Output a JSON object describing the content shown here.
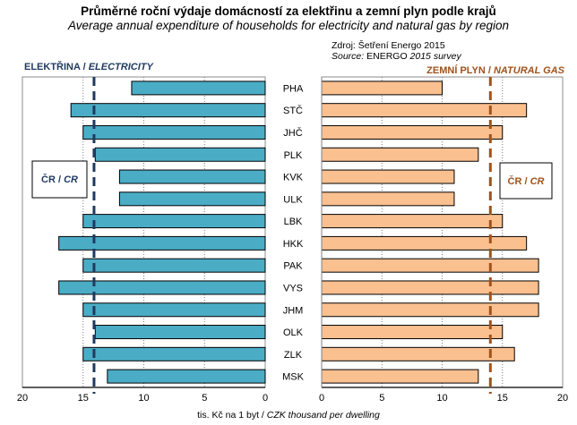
{
  "header": {
    "title": "Průměrné roční výdaje domácností  za elektřinu a zemní plyn podle krajů",
    "subtitle": "Average annual expenditure of households  for electricity and natural gas by region",
    "source_cz": "Zdroj: Šetření Energo 2015",
    "source_en_prefix": "Source: ",
    "source_en_body": "ENERGO",
    "source_en_suffix": " 2015 survey"
  },
  "panels": {
    "electricity_title_cz": "ELEKTŘINA / ",
    "electricity_title_en": "ELECTRICITY",
    "gas_title_cz": "ZEMNÍ PLYN / ",
    "gas_title_en": "NATURAL GAS",
    "avg_label_cz": "ČR / ",
    "avg_label_en": "CR"
  },
  "axis_label": {
    "cz": "tis. Kč na 1 byt / ",
    "en": "CZK thousand per dwelling"
  },
  "colors": {
    "electricity_bar": "#4bacc6",
    "gas_bar": "#fac090",
    "electricity_accent": "#1f3a5f",
    "gas_accent": "#a0521b"
  },
  "chart_data": [
    {
      "type": "bar",
      "orientation": "horizontal-reversed",
      "title": "ELEKTŘINA / ELECTRICITY",
      "categories": [
        "PHA",
        "STČ",
        "JHČ",
        "PLK",
        "KVK",
        "ULK",
        "LBK",
        "HKK",
        "PAK",
        "VYS",
        "JHM",
        "OLK",
        "ZLK",
        "MSK"
      ],
      "values": [
        11,
        16,
        15,
        14,
        12,
        12,
        15,
        17,
        15,
        17,
        15,
        14,
        15,
        13
      ],
      "reference_line": {
        "label": "ČR / CR",
        "value": 14.1
      },
      "xlim": [
        0,
        20
      ],
      "xticks": [
        20,
        15,
        10,
        5,
        0
      ],
      "xlabel": "tis. Kč na 1 byt / CZK thousand per dwelling",
      "grid": true
    },
    {
      "type": "bar",
      "orientation": "horizontal",
      "title": "ZEMNÍ PLYN / NATURAL GAS",
      "categories": [
        "PHA",
        "STČ",
        "JHČ",
        "PLK",
        "KVK",
        "ULK",
        "LBK",
        "HKK",
        "PAK",
        "VYS",
        "JHM",
        "OLK",
        "ZLK",
        "MSK"
      ],
      "values": [
        10,
        17,
        15,
        13,
        11,
        11,
        15,
        17,
        18,
        18,
        18,
        15,
        16,
        13
      ],
      "reference_line": {
        "label": "ČR / CR",
        "value": 14.0
      },
      "xlim": [
        0,
        20
      ],
      "xticks": [
        0,
        5,
        10,
        15,
        20
      ],
      "xlabel": "tis. Kč na 1 byt / CZK thousand per dwelling",
      "grid": true
    }
  ]
}
